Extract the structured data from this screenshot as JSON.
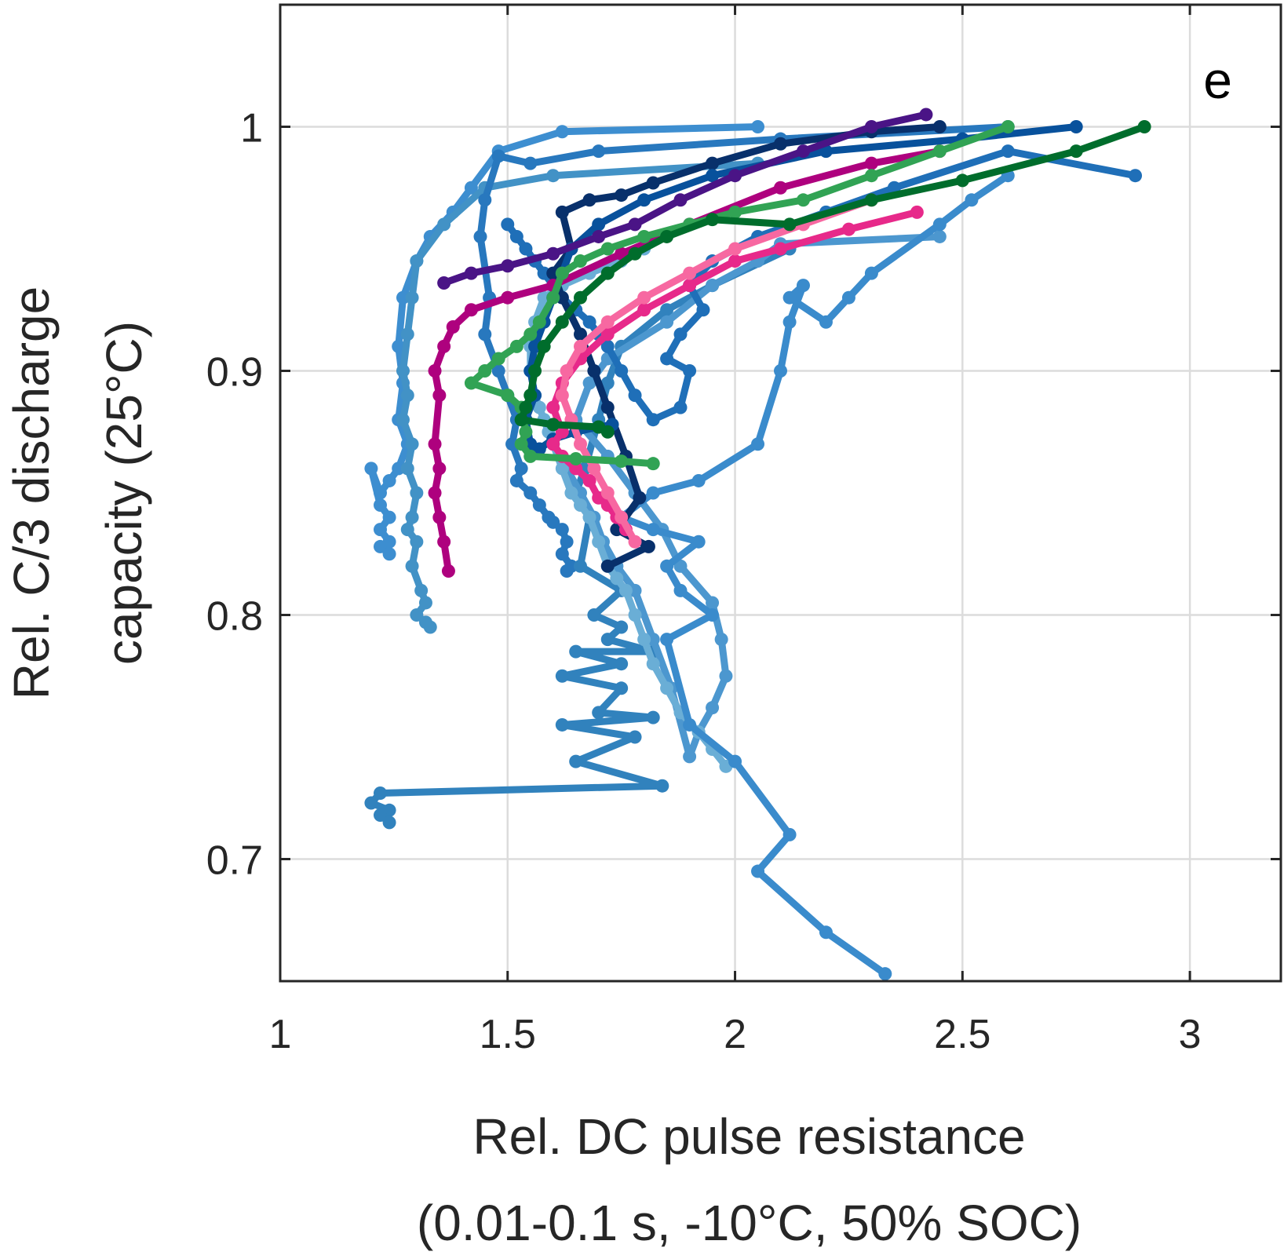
{
  "chart_data": {
    "type": "line",
    "panel_label": "e",
    "xlabel": [
      "Rel. DC pulse resistance",
      "(0.01-0.1 s, -10°C, 50% SOC)"
    ],
    "ylabel": [
      "Rel. C/3 discharge",
      "capacity (25°C)"
    ],
    "xlim": [
      1,
      3.2
    ],
    "ylim": [
      0.65,
      1.05
    ],
    "xticks": [
      1,
      1.5,
      2,
      2.5,
      3
    ],
    "xtick_labels": [
      "1",
      "1.5",
      "2",
      "2.5",
      "3"
    ],
    "yticks": [
      0.7,
      0.8,
      0.9,
      1.0
    ],
    "ytick_labels": [
      "0.7",
      "0.8",
      "0.9",
      "1"
    ],
    "grid": true,
    "series": [
      {
        "color": "#3d8ed0",
        "x": [
          2.05,
          1.62,
          1.48,
          1.42,
          1.38,
          1.33,
          1.3,
          1.27,
          1.26,
          1.27,
          1.26,
          1.28,
          1.26,
          1.24,
          1.22,
          1.2,
          1.22,
          1.24,
          1.22,
          1.24,
          1.22,
          1.24
        ],
        "y": [
          1.0,
          0.998,
          0.99,
          0.975,
          0.965,
          0.955,
          0.945,
          0.93,
          0.91,
          0.895,
          0.88,
          0.87,
          0.86,
          0.855,
          0.85,
          0.86,
          0.845,
          0.84,
          0.835,
          0.83,
          0.828,
          0.825
        ]
      },
      {
        "color": "#4292c6",
        "x": [
          2.05,
          1.6,
          1.45,
          1.36,
          1.3,
          1.29,
          1.28,
          1.27,
          1.28,
          1.27,
          1.29,
          1.28,
          1.3,
          1.29,
          1.28,
          1.3,
          1.29,
          1.31,
          1.32,
          1.3,
          1.32,
          1.33
        ],
        "y": [
          0.985,
          0.98,
          0.975,
          0.96,
          0.945,
          0.93,
          0.915,
          0.9,
          0.89,
          0.88,
          0.87,
          0.86,
          0.85,
          0.84,
          0.835,
          0.83,
          0.82,
          0.81,
          0.805,
          0.8,
          0.797,
          0.795
        ]
      },
      {
        "color": "#2878be",
        "x": [
          2.6,
          2.1,
          1.7,
          1.55,
          1.48,
          1.45,
          1.44,
          1.46,
          1.45,
          1.48,
          1.5,
          1.52,
          1.51,
          1.53,
          1.52,
          1.55,
          1.57,
          1.59,
          1.6,
          1.62,
          1.63,
          1.62,
          1.64,
          1.63
        ],
        "y": [
          1.0,
          0.995,
          0.99,
          0.985,
          0.988,
          0.97,
          0.955,
          0.93,
          0.915,
          0.9,
          0.89,
          0.88,
          0.87,
          0.86,
          0.855,
          0.85,
          0.845,
          0.84,
          0.838,
          0.835,
          0.83,
          0.825,
          0.82,
          0.818
        ]
      },
      {
        "color": "#3182bd",
        "x": [
          2.12,
          1.95,
          1.85,
          1.75,
          1.72,
          1.7,
          1.67,
          1.65,
          1.68,
          1.66,
          1.75,
          1.69,
          1.75,
          1.72,
          1.82,
          1.65,
          1.75,
          1.62,
          1.75,
          1.7,
          1.82,
          1.62,
          1.78,
          1.65,
          1.84,
          1.22,
          1.2,
          1.24,
          1.22,
          1.24
        ],
        "y": [
          0.95,
          0.935,
          0.925,
          0.91,
          0.895,
          0.88,
          0.86,
          0.85,
          0.84,
          0.82,
          0.81,
          0.8,
          0.795,
          0.79,
          0.785,
          0.785,
          0.78,
          0.775,
          0.77,
          0.76,
          0.758,
          0.755,
          0.75,
          0.74,
          0.73,
          0.727,
          0.723,
          0.72,
          0.718,
          0.715
        ]
      },
      {
        "color": "#4c97cf",
        "x": [
          2.45,
          2.1,
          2.05,
          1.95,
          1.85,
          1.72,
          1.68,
          1.65,
          1.72,
          1.78,
          1.84,
          1.88,
          1.95,
          1.97,
          1.98,
          1.95,
          1.92,
          1.9,
          1.86,
          1.82,
          1.78,
          1.74,
          1.71,
          1.69,
          1.66,
          1.63,
          1.6,
          1.58
        ],
        "y": [
          0.955,
          0.952,
          0.945,
          0.935,
          0.92,
          0.905,
          0.895,
          0.88,
          0.865,
          0.85,
          0.835,
          0.82,
          0.805,
          0.79,
          0.775,
          0.762,
          0.752,
          0.742,
          0.77,
          0.79,
          0.81,
          0.82,
          0.83,
          0.84,
          0.85,
          0.86,
          0.87,
          0.88
        ]
      },
      {
        "color": "#6aaed6",
        "x": [
          1.98,
          1.95,
          1.92,
          1.88,
          1.85,
          1.82,
          1.8,
          1.78,
          1.76,
          1.74,
          1.72,
          1.7,
          1.68,
          1.66,
          1.64,
          1.62,
          1.6,
          1.59,
          1.58,
          1.57,
          1.56,
          1.55,
          1.55,
          1.56,
          1.58,
          1.62,
          1.68,
          1.75,
          1.8
        ],
        "y": [
          0.738,
          0.745,
          0.752,
          0.76,
          0.77,
          0.78,
          0.79,
          0.8,
          0.81,
          0.815,
          0.82,
          0.83,
          0.84,
          0.845,
          0.85,
          0.86,
          0.87,
          0.875,
          0.88,
          0.885,
          0.89,
          0.9,
          0.91,
          0.92,
          0.93,
          0.935,
          0.94,
          0.945,
          0.95
        ]
      },
      {
        "color": "#3a8bcc",
        "x": [
          2.33,
          2.2,
          2.05,
          2.12,
          2.0,
          1.9,
          1.85,
          1.95,
          1.88,
          1.85,
          1.92,
          1.82,
          1.75,
          1.82,
          1.92,
          2.05,
          2.1,
          2.12,
          2.15,
          2.12,
          2.2,
          2.25,
          2.3,
          2.45,
          2.52,
          2.6
        ],
        "y": [
          0.653,
          0.67,
          0.695,
          0.71,
          0.74,
          0.755,
          0.79,
          0.8,
          0.81,
          0.82,
          0.83,
          0.835,
          0.84,
          0.85,
          0.855,
          0.87,
          0.9,
          0.92,
          0.935,
          0.93,
          0.92,
          0.93,
          0.94,
          0.96,
          0.97,
          0.98
        ]
      },
      {
        "color": "#1f6fb8",
        "x": [
          2.88,
          2.6,
          2.35,
          2.2,
          2.05,
          1.95,
          1.9,
          1.93,
          1.88,
          1.85,
          1.9,
          1.88,
          1.82,
          1.78,
          1.75,
          1.72,
          1.7,
          1.68,
          1.65,
          1.62,
          1.6,
          1.58,
          1.56,
          1.54,
          1.52,
          1.5
        ],
        "y": [
          0.98,
          0.99,
          0.975,
          0.965,
          0.955,
          0.945,
          0.935,
          0.925,
          0.915,
          0.905,
          0.9,
          0.885,
          0.88,
          0.89,
          0.9,
          0.91,
          0.915,
          0.92,
          0.925,
          0.93,
          0.935,
          0.94,
          0.945,
          0.95,
          0.955,
          0.96
        ]
      },
      {
        "color": "#08306b",
        "x": [
          2.45,
          2.3,
          2.1,
          1.95,
          1.82,
          1.75,
          1.68,
          1.62,
          1.64,
          1.6,
          1.62,
          1.66,
          1.69,
          1.72,
          1.76,
          1.79,
          1.74,
          1.81,
          1.72
        ],
        "y": [
          1.0,
          0.998,
          0.993,
          0.985,
          0.977,
          0.972,
          0.97,
          0.965,
          0.95,
          0.94,
          0.93,
          0.915,
          0.9,
          0.885,
          0.865,
          0.848,
          0.835,
          0.828,
          0.82
        ]
      },
      {
        "color": "#08519c",
        "x": [
          2.75,
          2.5,
          2.2,
          1.95,
          1.8,
          1.7,
          1.64,
          1.62,
          1.6,
          1.58,
          1.56,
          1.55,
          1.56,
          1.54,
          1.55,
          1.57,
          1.6,
          1.65,
          1.7,
          1.73
        ],
        "y": [
          1.0,
          0.995,
          0.99,
          0.98,
          0.97,
          0.96,
          0.95,
          0.94,
          0.93,
          0.92,
          0.91,
          0.9,
          0.89,
          0.88,
          0.87,
          0.868,
          0.872,
          0.875,
          0.877,
          0.878
        ]
      },
      {
        "color": "#4a1486",
        "x": [
          2.42,
          2.3,
          2.15,
          2.0,
          1.88,
          1.78,
          1.7,
          1.6,
          1.5,
          1.42,
          1.36
        ],
        "y": [
          1.005,
          1.0,
          0.99,
          0.98,
          0.97,
          0.96,
          0.955,
          0.948,
          0.943,
          0.94,
          0.936
        ]
      },
      {
        "color": "#ae017e",
        "x": [
          2.45,
          2.3,
          2.1,
          1.9,
          1.75,
          1.6,
          1.5,
          1.42,
          1.38,
          1.36,
          1.34,
          1.35,
          1.34,
          1.35,
          1.34,
          1.35,
          1.36,
          1.37
        ],
        "y": [
          0.99,
          0.985,
          0.975,
          0.96,
          0.948,
          0.935,
          0.93,
          0.925,
          0.918,
          0.91,
          0.9,
          0.89,
          0.87,
          0.86,
          0.85,
          0.84,
          0.83,
          0.818
        ]
      },
      {
        "color": "#e7298a",
        "x": [
          2.4,
          2.25,
          2.1,
          2.0,
          1.9,
          1.8,
          1.72,
          1.66,
          1.62,
          1.6,
          1.62,
          1.6,
          1.62,
          1.65,
          1.68,
          1.7,
          1.72,
          1.74,
          1.76
        ],
        "y": [
          0.965,
          0.958,
          0.95,
          0.945,
          0.935,
          0.925,
          0.915,
          0.905,
          0.895,
          0.885,
          0.875,
          0.87,
          0.865,
          0.86,
          0.855,
          0.848,
          0.845,
          0.84,
          0.835
        ]
      },
      {
        "color": "#f768a1",
        "x": [
          2.3,
          2.15,
          2.0,
          1.9,
          1.8,
          1.72,
          1.66,
          1.63,
          1.62,
          1.64,
          1.66,
          1.69,
          1.72,
          1.75,
          1.78
        ],
        "y": [
          0.97,
          0.96,
          0.95,
          0.94,
          0.93,
          0.92,
          0.91,
          0.9,
          0.89,
          0.88,
          0.87,
          0.86,
          0.85,
          0.84,
          0.83
        ]
      },
      {
        "color": "#31a354",
        "x": [
          2.6,
          2.45,
          2.3,
          2.15,
          2.0,
          1.9,
          1.8,
          1.72,
          1.66,
          1.62,
          1.6,
          1.57,
          1.55,
          1.52,
          1.48,
          1.45,
          1.42,
          1.5,
          1.53,
          1.54,
          1.53,
          1.55,
          1.65,
          1.75,
          1.82
        ],
        "y": [
          1.0,
          0.99,
          0.98,
          0.97,
          0.965,
          0.96,
          0.955,
          0.95,
          0.945,
          0.94,
          0.93,
          0.92,
          0.915,
          0.91,
          0.905,
          0.9,
          0.895,
          0.89,
          0.885,
          0.875,
          0.87,
          0.865,
          0.864,
          0.863,
          0.862
        ]
      },
      {
        "color": "#006d2c",
        "x": [
          2.9,
          2.75,
          2.5,
          2.3,
          2.12,
          1.95,
          1.85,
          1.78,
          1.72,
          1.66,
          1.62,
          1.58,
          1.56,
          1.55,
          1.54,
          1.53,
          1.6,
          1.7,
          1.72
        ],
        "y": [
          1.0,
          0.99,
          0.978,
          0.97,
          0.96,
          0.962,
          0.955,
          0.948,
          0.94,
          0.93,
          0.92,
          0.91,
          0.9,
          0.89,
          0.885,
          0.88,
          0.878,
          0.877,
          0.875
        ]
      }
    ]
  }
}
